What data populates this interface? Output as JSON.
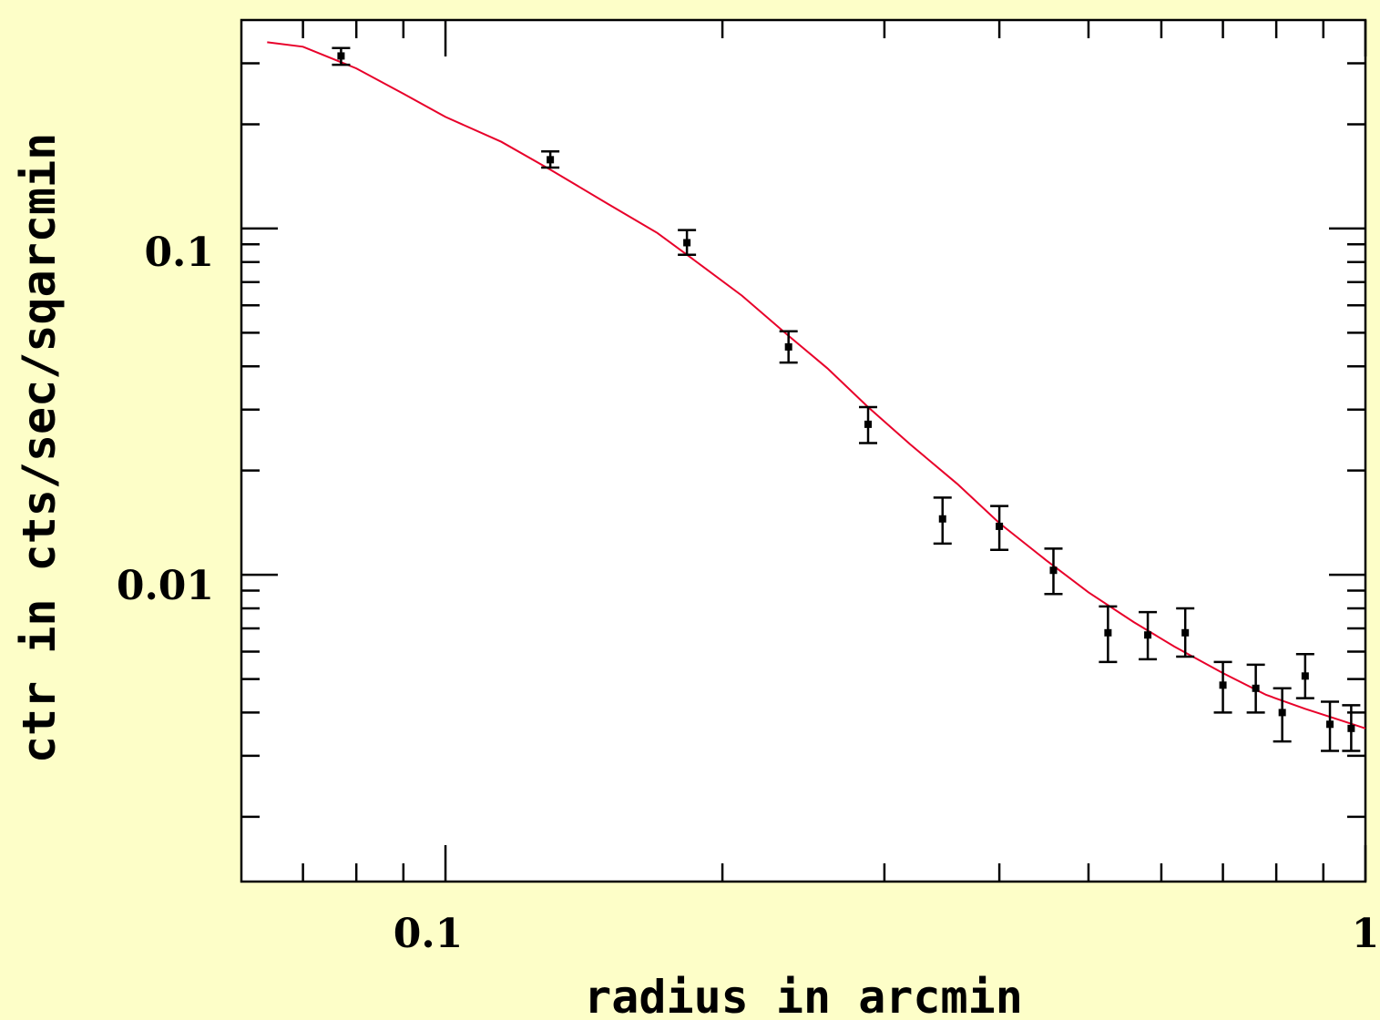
{
  "chart_data": {
    "type": "scatter",
    "title": "",
    "xlabel": "radius in arcmin",
    "ylabel": "ctr in cts/sec/sqarcmin",
    "xscale": "log",
    "yscale": "log",
    "xlim": [
      0.06,
      1.0
    ],
    "ylim": [
      0.0013,
      0.4
    ],
    "x_tick_labels": [
      {
        "value": 0.1,
        "label": "0.1"
      },
      {
        "value": 1,
        "label": "1"
      }
    ],
    "y_tick_labels": [
      {
        "value": 0.1,
        "label": "0.1"
      },
      {
        "value": 0.01,
        "label": "0.01"
      }
    ],
    "grid": false,
    "legend": "none",
    "colors": {
      "background": "#fdfec8",
      "plot_area": "#ffffff",
      "data": "#000000",
      "model": "#e8002a"
    },
    "series": [
      {
        "kind": "points_with_errorbars",
        "points": [
          {
            "x": 0.077,
            "y": 0.315,
            "yerr_low": 0.297,
            "yerr_high": 0.332
          },
          {
            "x": 0.13,
            "y": 0.158,
            "yerr_low": 0.15,
            "yerr_high": 0.167
          },
          {
            "x": 0.183,
            "y": 0.091,
            "yerr_low": 0.084,
            "yerr_high": 0.099
          },
          {
            "x": 0.236,
            "y": 0.0455,
            "yerr_low": 0.041,
            "yerr_high": 0.0505
          },
          {
            "x": 0.288,
            "y": 0.0272,
            "yerr_low": 0.024,
            "yerr_high": 0.0305
          },
          {
            "x": 0.347,
            "y": 0.0145,
            "yerr_low": 0.0123,
            "yerr_high": 0.0167
          },
          {
            "x": 0.4,
            "y": 0.0138,
            "yerr_low": 0.0118,
            "yerr_high": 0.0158
          },
          {
            "x": 0.458,
            "y": 0.0103,
            "yerr_low": 0.0088,
            "yerr_high": 0.0119
          },
          {
            "x": 0.525,
            "y": 0.0068,
            "yerr_low": 0.0056,
            "yerr_high": 0.0081
          },
          {
            "x": 0.58,
            "y": 0.0067,
            "yerr_low": 0.0057,
            "yerr_high": 0.0078
          },
          {
            "x": 0.637,
            "y": 0.0068,
            "yerr_low": 0.0058,
            "yerr_high": 0.008
          },
          {
            "x": 0.7,
            "y": 0.0048,
            "yerr_low": 0.004,
            "yerr_high": 0.0056
          },
          {
            "x": 0.76,
            "y": 0.0047,
            "yerr_low": 0.004,
            "yerr_high": 0.0055
          },
          {
            "x": 0.812,
            "y": 0.004,
            "yerr_low": 0.0033,
            "yerr_high": 0.0047
          },
          {
            "x": 0.86,
            "y": 0.0051,
            "yerr_low": 0.0044,
            "yerr_high": 0.0059
          },
          {
            "x": 0.915,
            "y": 0.0037,
            "yerr_low": 0.0031,
            "yerr_high": 0.0043
          },
          {
            "x": 0.965,
            "y": 0.0036,
            "yerr_low": 0.0031,
            "yerr_high": 0.0042
          }
        ]
      },
      {
        "kind": "model_curve",
        "x": [
          0.064,
          0.07,
          0.08,
          0.09,
          0.1,
          0.115,
          0.13,
          0.15,
          0.17,
          0.19,
          0.21,
          0.236,
          0.26,
          0.288,
          0.32,
          0.36,
          0.4,
          0.45,
          0.5,
          0.56,
          0.62,
          0.7,
          0.78,
          0.86,
          0.94,
          1.0
        ],
        "y": [
          0.345,
          0.335,
          0.29,
          0.245,
          0.21,
          0.178,
          0.148,
          0.118,
          0.097,
          0.078,
          0.064,
          0.049,
          0.0395,
          0.0305,
          0.0238,
          0.0183,
          0.0141,
          0.011,
          0.0089,
          0.0073,
          0.0062,
          0.0052,
          0.0045,
          0.0041,
          0.0038,
          0.0036
        ]
      }
    ]
  }
}
